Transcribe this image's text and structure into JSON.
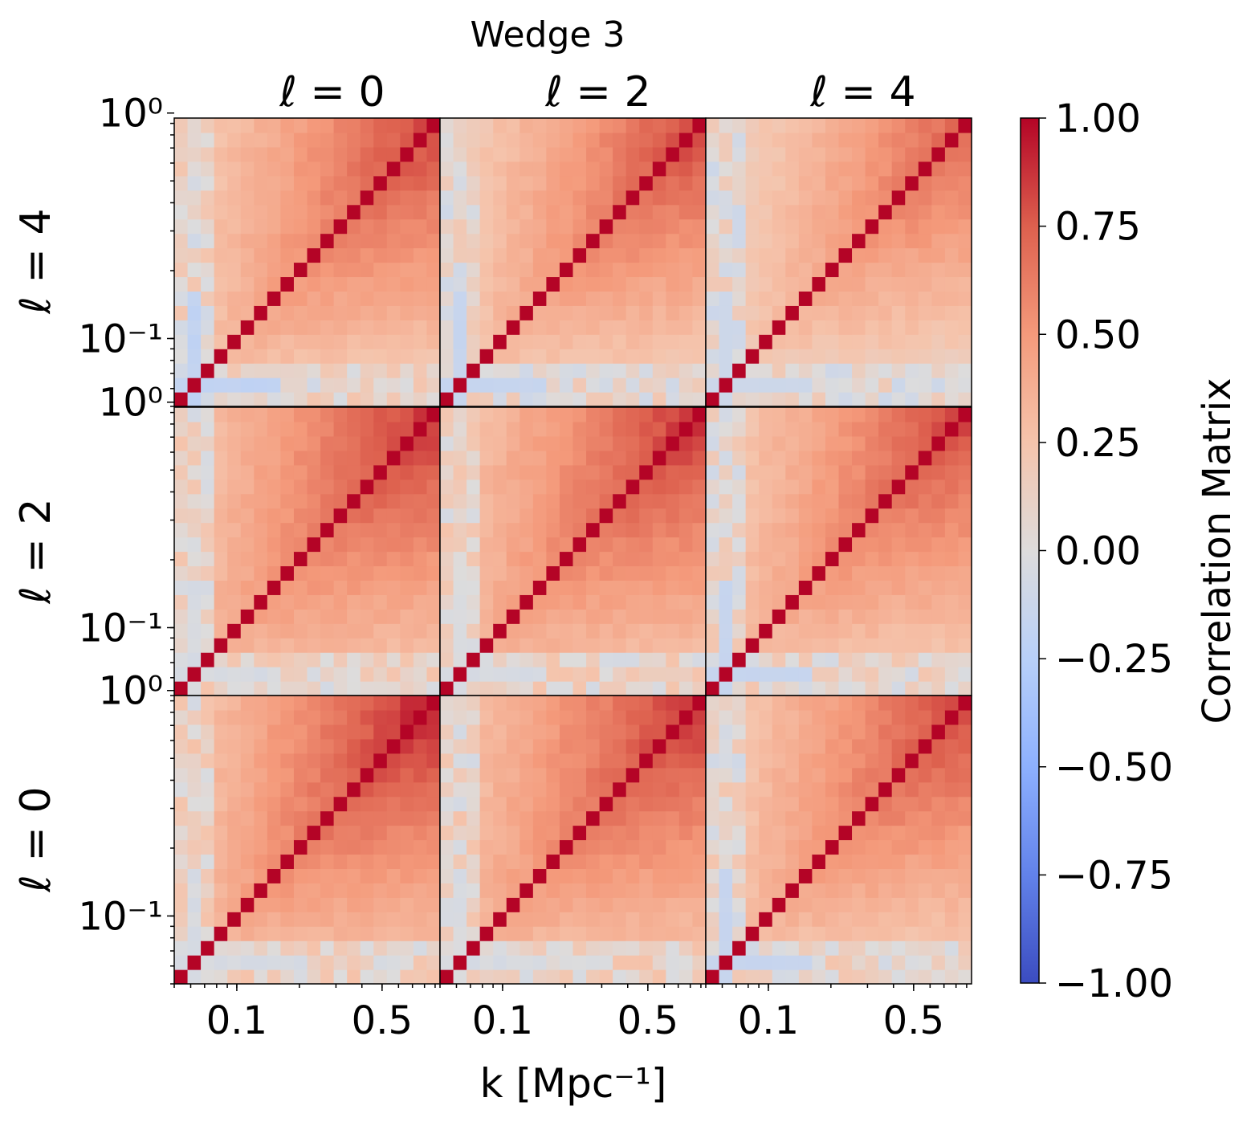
{
  "chart_data": {
    "type": "heatmap",
    "title": "Wedge 3",
    "column_titles": [
      "ℓ = 0",
      "ℓ = 2",
      "ℓ = 4"
    ],
    "row_titles": [
      "ℓ = 4",
      "ℓ = 2",
      "ℓ = 0"
    ],
    "xlabel": "k [Mpc⁻¹]",
    "x_tick_labels": [
      "0.1",
      "0.5"
    ],
    "x_tick_values": [
      0.1,
      0.5
    ],
    "y_tick_labels": [
      "10⁰",
      "10⁻¹"
    ],
    "y_tick_values": [
      1.0,
      0.1
    ],
    "k_range": [
      0.05,
      0.95
    ],
    "grid_bins_per_panel": 20,
    "diagonal_value": 1.0,
    "colorbar": {
      "label": "Correlation Matrix",
      "colormap": "coolwarm",
      "range": [
        -1.0,
        1.0
      ],
      "tick_values": [
        1.0,
        0.75,
        0.5,
        0.25,
        0.0,
        -0.25,
        -0.5,
        -0.75,
        -1.0
      ],
      "tick_labels": [
        "1.00",
        "0.75",
        "0.50",
        "0.25",
        "0.00",
        "−0.25",
        "−0.50",
        "−0.75",
        "−1.00"
      ]
    },
    "panels": [
      {
        "row_label": "ℓ = 4",
        "col_label": "ℓ = 0",
        "high_k_corr": 0.85,
        "offdiag_base": 0.15,
        "min_corr": -0.25
      },
      {
        "row_label": "ℓ = 4",
        "col_label": "ℓ = 2",
        "high_k_corr": 0.85,
        "offdiag_base": 0.12,
        "min_corr": -0.2
      },
      {
        "row_label": "ℓ = 4",
        "col_label": "ℓ = 4",
        "high_k_corr": 0.75,
        "offdiag_base": 0.08,
        "min_corr": -0.15
      },
      {
        "row_label": "ℓ = 2",
        "col_label": "ℓ = 0",
        "high_k_corr": 0.9,
        "offdiag_base": 0.2,
        "min_corr": -0.05
      },
      {
        "row_label": "ℓ = 2",
        "col_label": "ℓ = 2",
        "high_k_corr": 0.9,
        "offdiag_base": 0.2,
        "min_corr": -0.05
      },
      {
        "row_label": "ℓ = 2",
        "col_label": "ℓ = 4",
        "high_k_corr": 0.85,
        "offdiag_base": 0.15,
        "min_corr": -0.2
      },
      {
        "row_label": "ℓ = 0",
        "col_label": "ℓ = 0",
        "high_k_corr": 0.95,
        "offdiag_base": 0.2,
        "min_corr": -0.05
      },
      {
        "row_label": "ℓ = 0",
        "col_label": "ℓ = 2",
        "high_k_corr": 0.9,
        "offdiag_base": 0.2,
        "min_corr": -0.05
      },
      {
        "row_label": "ℓ = 0",
        "col_label": "ℓ = 4",
        "high_k_corr": 0.85,
        "offdiag_base": 0.15,
        "min_corr": -0.2
      }
    ]
  }
}
